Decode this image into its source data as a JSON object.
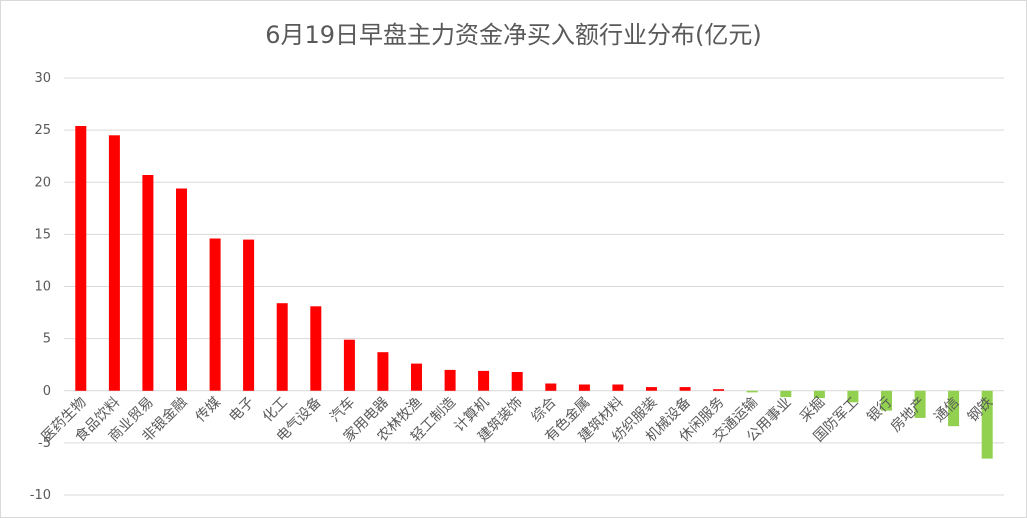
{
  "chart_data": {
    "type": "bar",
    "title": "6月19日早盘主力资金净买入额行业分布(亿元)",
    "xlabel": "",
    "ylabel": "",
    "ylim": [
      -10,
      30
    ],
    "yticks": [
      30,
      25,
      20,
      15,
      10,
      5,
      0,
      -5,
      -10
    ],
    "grid": true,
    "legend": "none",
    "positive_color": "#ff0000",
    "negative_color": "#92d050",
    "categories": [
      "医药生物",
      "食品饮料",
      "商业贸易",
      "非银金融",
      "传媒",
      "电子",
      "化工",
      "电气设备",
      "汽车",
      "家用电器",
      "农林牧渔",
      "轻工制造",
      "计算机",
      "建筑装饰",
      "综合",
      "有色金属",
      "建筑材料",
      "纺织服装",
      "机械设备",
      "休闲服务",
      "交通运输",
      "公用事业",
      "采掘",
      "国防军工",
      "银行",
      "房地产",
      "通信",
      "钢铁"
    ],
    "values": [
      25.4,
      24.5,
      20.7,
      19.4,
      14.6,
      14.5,
      8.4,
      8.1,
      4.9,
      3.7,
      2.6,
      2.0,
      1.9,
      1.8,
      0.7,
      0.6,
      0.6,
      0.35,
      0.35,
      0.15,
      -0.15,
      -0.6,
      -0.7,
      -1.1,
      -1.9,
      -2.6,
      -3.4,
      -6.5
    ]
  }
}
